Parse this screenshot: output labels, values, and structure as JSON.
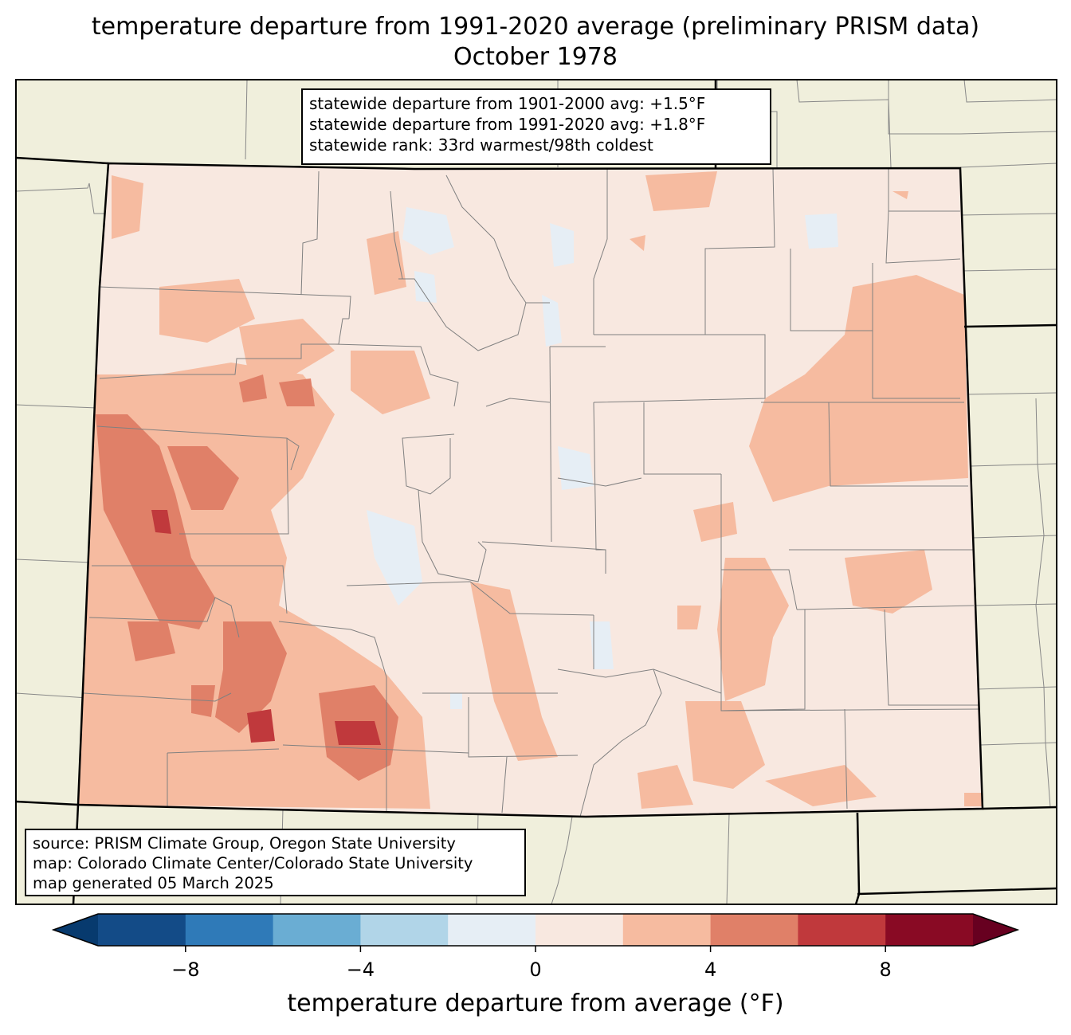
{
  "title": {
    "line1": "temperature departure from 1991-2020 average (preliminary PRISM data)",
    "line2": "October 1978"
  },
  "stats": {
    "line1": "statewide departure from 1901-2000 avg: +1.5°F",
    "line2": "statewide departure from 1991-2020 avg: +1.8°F",
    "line3": "statewide rank: 33rd warmest/98th coldest"
  },
  "source": {
    "line1": "source: PRISM Climate Group, Oregon State University",
    "line2": "map: Colorado Climate Center/Colorado State University",
    "line3": "map generated 05 March 2025"
  },
  "colorbar": {
    "label": "temperature departure from average (°F)",
    "bins": [
      {
        "from": -10,
        "to": -8,
        "color": "#134b87"
      },
      {
        "from": -8,
        "to": -6,
        "color": "#2f7ab8"
      },
      {
        "from": -6,
        "to": -4,
        "color": "#6aadd3"
      },
      {
        "from": -4,
        "to": -2,
        "color": "#b1d5e8"
      },
      {
        "from": -2,
        "to": 0,
        "color": "#e6eef5"
      },
      {
        "from": 0,
        "to": 2,
        "color": "#f8e8e0"
      },
      {
        "from": 2,
        "to": 4,
        "color": "#f6bba0"
      },
      {
        "from": 4,
        "to": 6,
        "color": "#e08068"
      },
      {
        "from": 6,
        "to": 8,
        "color": "#c0393c"
      },
      {
        "from": 8,
        "to": 10,
        "color": "#890a24"
      }
    ],
    "under_color": "#073a6e",
    "over_color": "#670020",
    "ticks": [
      {
        "value": -8,
        "label": "−8"
      },
      {
        "value": -4,
        "label": "−4"
      },
      {
        "value": 0,
        "label": "0"
      },
      {
        "value": 4,
        "label": "4"
      },
      {
        "value": 8,
        "label": "8"
      }
    ]
  },
  "map": {
    "land_color": "#f0efdc",
    "state_background_color": "#f8e8e0"
  }
}
